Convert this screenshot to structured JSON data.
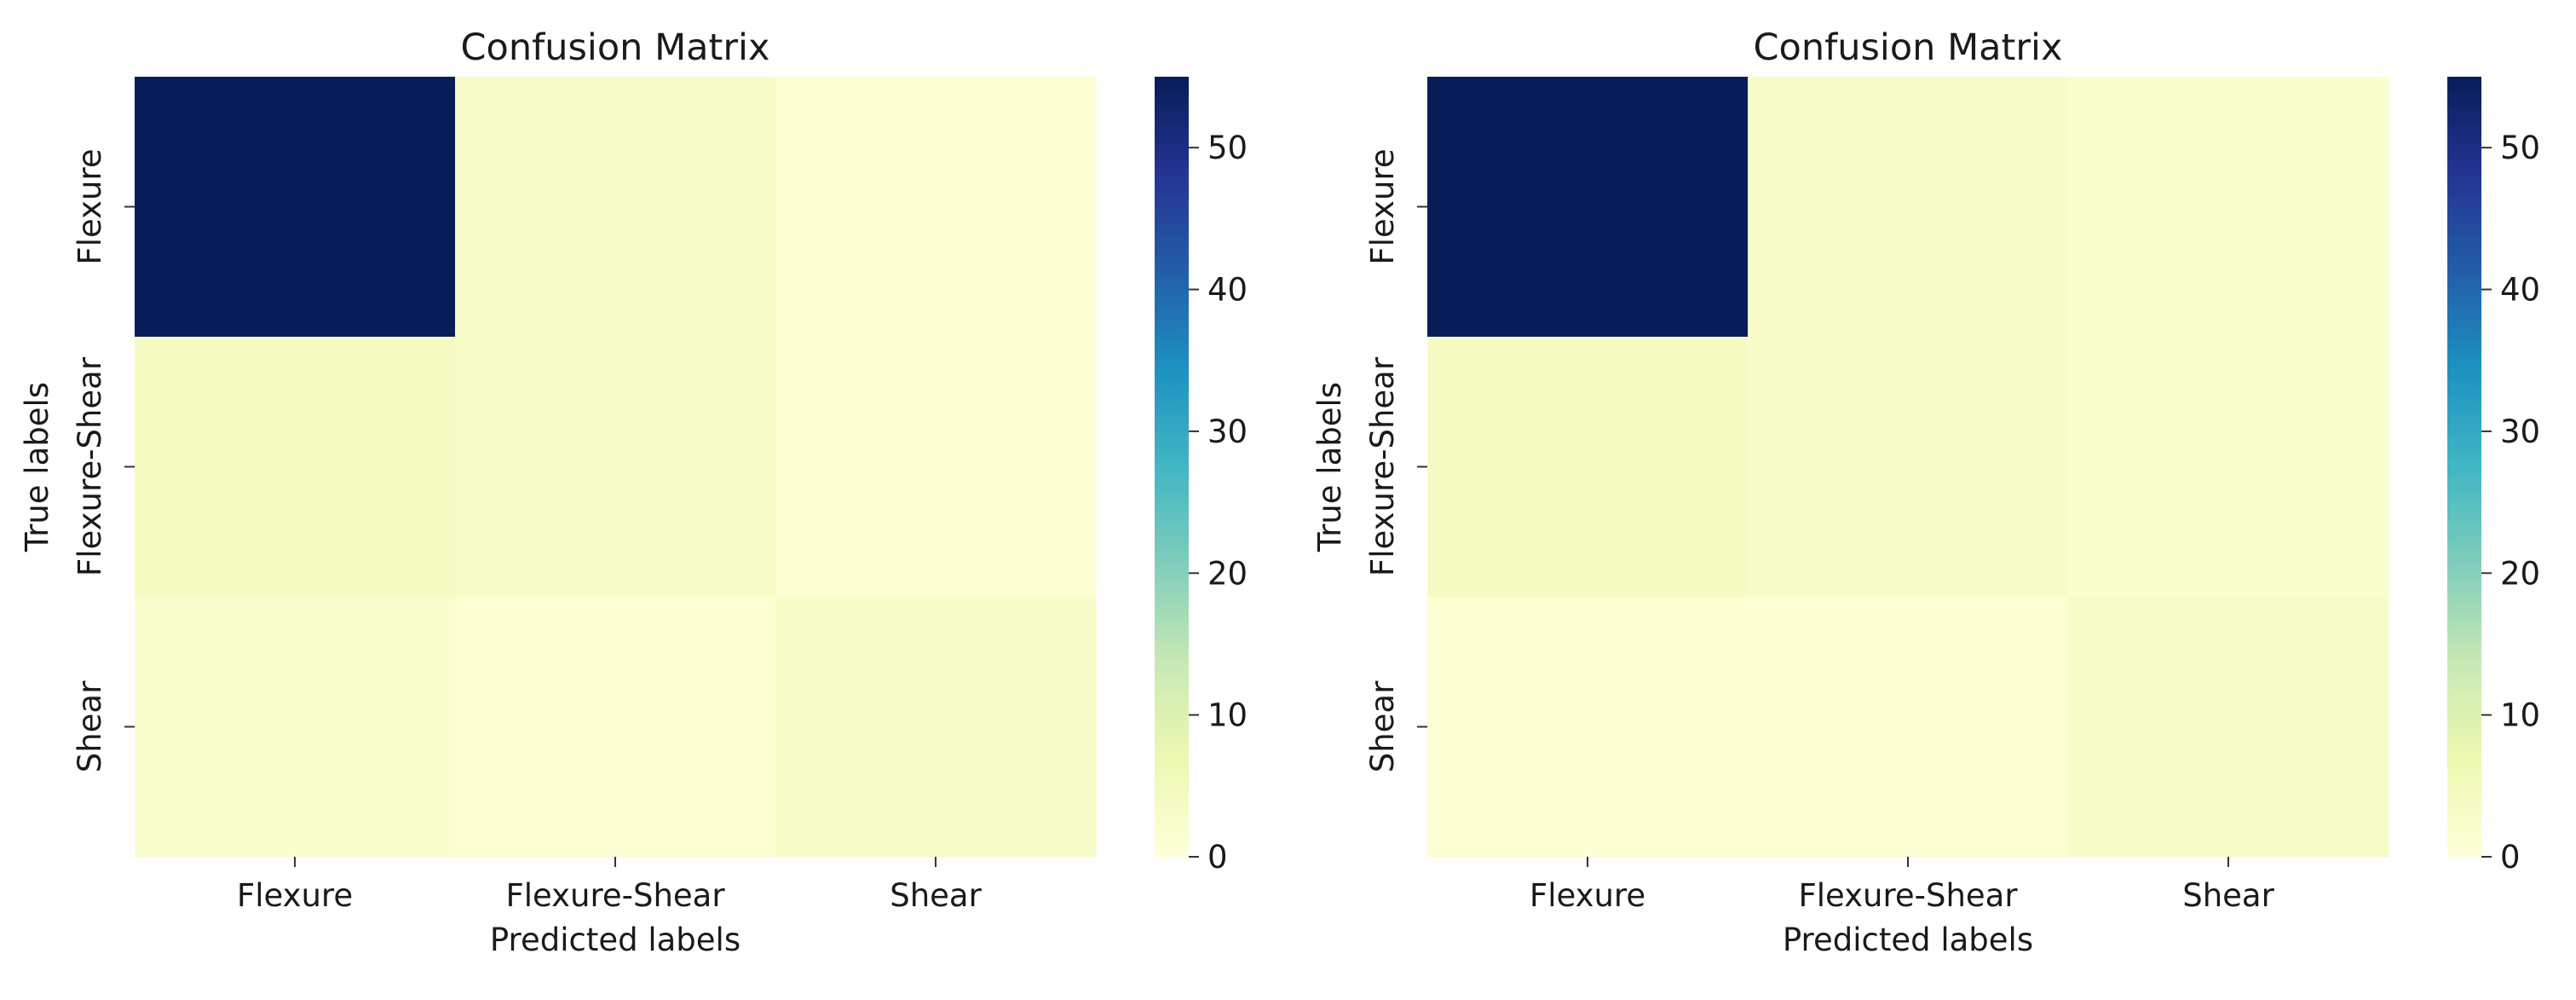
{
  "chart_data": [
    {
      "type": "heatmap",
      "title": "Confusion Matrix",
      "xlabel": "Predicted labels",
      "ylabel": "True labels",
      "x_categories": [
        "Flexure",
        "Flexure-Shear",
        "Shear"
      ],
      "y_categories": [
        "Flexure",
        "Flexure-Shear",
        "Shear"
      ],
      "values": [
        [
          55,
          3,
          1
        ],
        [
          4,
          3,
          1
        ],
        [
          2,
          1,
          3
        ]
      ],
      "colorbar": {
        "ticks": [
          "0",
          "10",
          "20",
          "30",
          "40",
          "50"
        ],
        "range": [
          0,
          55
        ],
        "colormap": "YlGnBu"
      },
      "grid": false
    },
    {
      "type": "heatmap",
      "title": "Confusion Matrix",
      "xlabel": "Predicted labels",
      "ylabel": "True labels",
      "x_categories": [
        "Flexure",
        "Flexure-Shear",
        "Shear"
      ],
      "y_categories": [
        "Flexure",
        "Flexure-Shear",
        "Shear"
      ],
      "values": [
        [
          55,
          3,
          2
        ],
        [
          4,
          3,
          2
        ],
        [
          1,
          1,
          3
        ]
      ],
      "colorbar": {
        "ticks": [
          "0",
          "10",
          "20",
          "30",
          "40",
          "50"
        ],
        "range": [
          0,
          55
        ],
        "colormap": "YlGnBu"
      },
      "grid": false
    }
  ]
}
